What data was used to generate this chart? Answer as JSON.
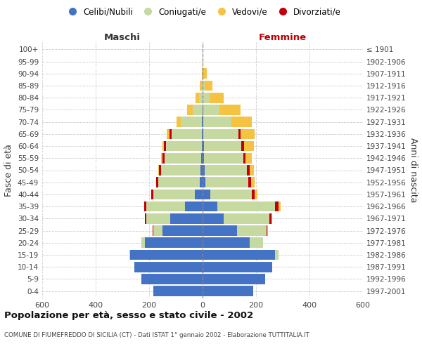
{
  "age_groups": [
    "0-4",
    "5-9",
    "10-14",
    "15-19",
    "20-24",
    "25-29",
    "30-34",
    "35-39",
    "40-44",
    "45-49",
    "50-54",
    "55-59",
    "60-64",
    "65-69",
    "70-74",
    "75-79",
    "80-84",
    "85-89",
    "90-94",
    "95-99",
    "100+"
  ],
  "birth_years": [
    "1997-2001",
    "1992-1996",
    "1987-1991",
    "1982-1986",
    "1977-1981",
    "1972-1976",
    "1967-1971",
    "1962-1966",
    "1957-1961",
    "1952-1956",
    "1947-1951",
    "1942-1946",
    "1937-1941",
    "1932-1936",
    "1927-1931",
    "1922-1926",
    "1917-1921",
    "1912-1916",
    "1907-1911",
    "1902-1906",
    "≤ 1901"
  ],
  "colors": {
    "celibi": "#4472C4",
    "coniugati": "#C5D9A0",
    "vedovi": "#F5C242",
    "divorziati": "#C0000C"
  },
  "male": {
    "celibi": [
      185,
      230,
      255,
      270,
      215,
      150,
      120,
      65,
      30,
      10,
      7,
      5,
      3,
      2,
      2,
      0,
      0,
      0,
      0,
      0,
      0
    ],
    "coniugati": [
      0,
      0,
      0,
      5,
      15,
      35,
      90,
      145,
      155,
      155,
      148,
      138,
      135,
      115,
      80,
      38,
      12,
      3,
      0,
      0,
      0
    ],
    "vedovi": [
      0,
      0,
      0,
      0,
      0,
      0,
      0,
      0,
      0,
      1,
      2,
      3,
      5,
      10,
      15,
      20,
      15,
      8,
      2,
      0,
      0
    ],
    "divorziati": [
      0,
      0,
      0,
      0,
      0,
      3,
      5,
      8,
      8,
      8,
      8,
      8,
      8,
      8,
      0,
      0,
      0,
      0,
      0,
      0,
      0
    ]
  },
  "female": {
    "nubili": [
      190,
      235,
      260,
      270,
      175,
      130,
      80,
      55,
      30,
      10,
      7,
      5,
      4,
      3,
      2,
      2,
      0,
      0,
      0,
      0,
      0
    ],
    "coniugate": [
      0,
      0,
      0,
      15,
      50,
      110,
      170,
      215,
      155,
      162,
      158,
      148,
      142,
      132,
      105,
      60,
      25,
      8,
      3,
      0,
      0
    ],
    "vedove": [
      0,
      0,
      0,
      0,
      0,
      2,
      3,
      8,
      10,
      13,
      16,
      22,
      38,
      52,
      78,
      80,
      55,
      30,
      12,
      2,
      0
    ],
    "divorziate": [
      0,
      0,
      0,
      0,
      0,
      3,
      8,
      15,
      10,
      10,
      10,
      8,
      8,
      8,
      0,
      0,
      0,
      0,
      0,
      0,
      0
    ]
  },
  "xlim": [
    -600,
    600
  ],
  "xticks": [
    -600,
    -400,
    -200,
    0,
    200,
    400,
    600
  ],
  "xticklabels": [
    "600",
    "400",
    "200",
    "0",
    "200",
    "400",
    "600"
  ],
  "title": "Popolazione per età, sesso e stato civile - 2002",
  "subtitle": "COMUNE DI FIUMEFREDDO DI SICILIA (CT) - Dati ISTAT 1° gennaio 2002 - Elaborazione TUTTITALIA.IT",
  "ylabel_left": "Fasce di età",
  "ylabel_right": "Anni di nascita",
  "label_maschi": "Maschi",
  "label_femmine": "Femmine",
  "femmine_color": "#C00000",
  "maschi_color": "#333333",
  "legend_labels": [
    "Celibi/Nubili",
    "Coniugati/e",
    "Vedovi/e",
    "Divorziati/e"
  ],
  "legend_colors": [
    "#4472C4",
    "#C5D9A0",
    "#F5C242",
    "#C0000C"
  ],
  "background_color": "#ffffff",
  "grid_color": "#cccccc",
  "bar_height": 0.85
}
